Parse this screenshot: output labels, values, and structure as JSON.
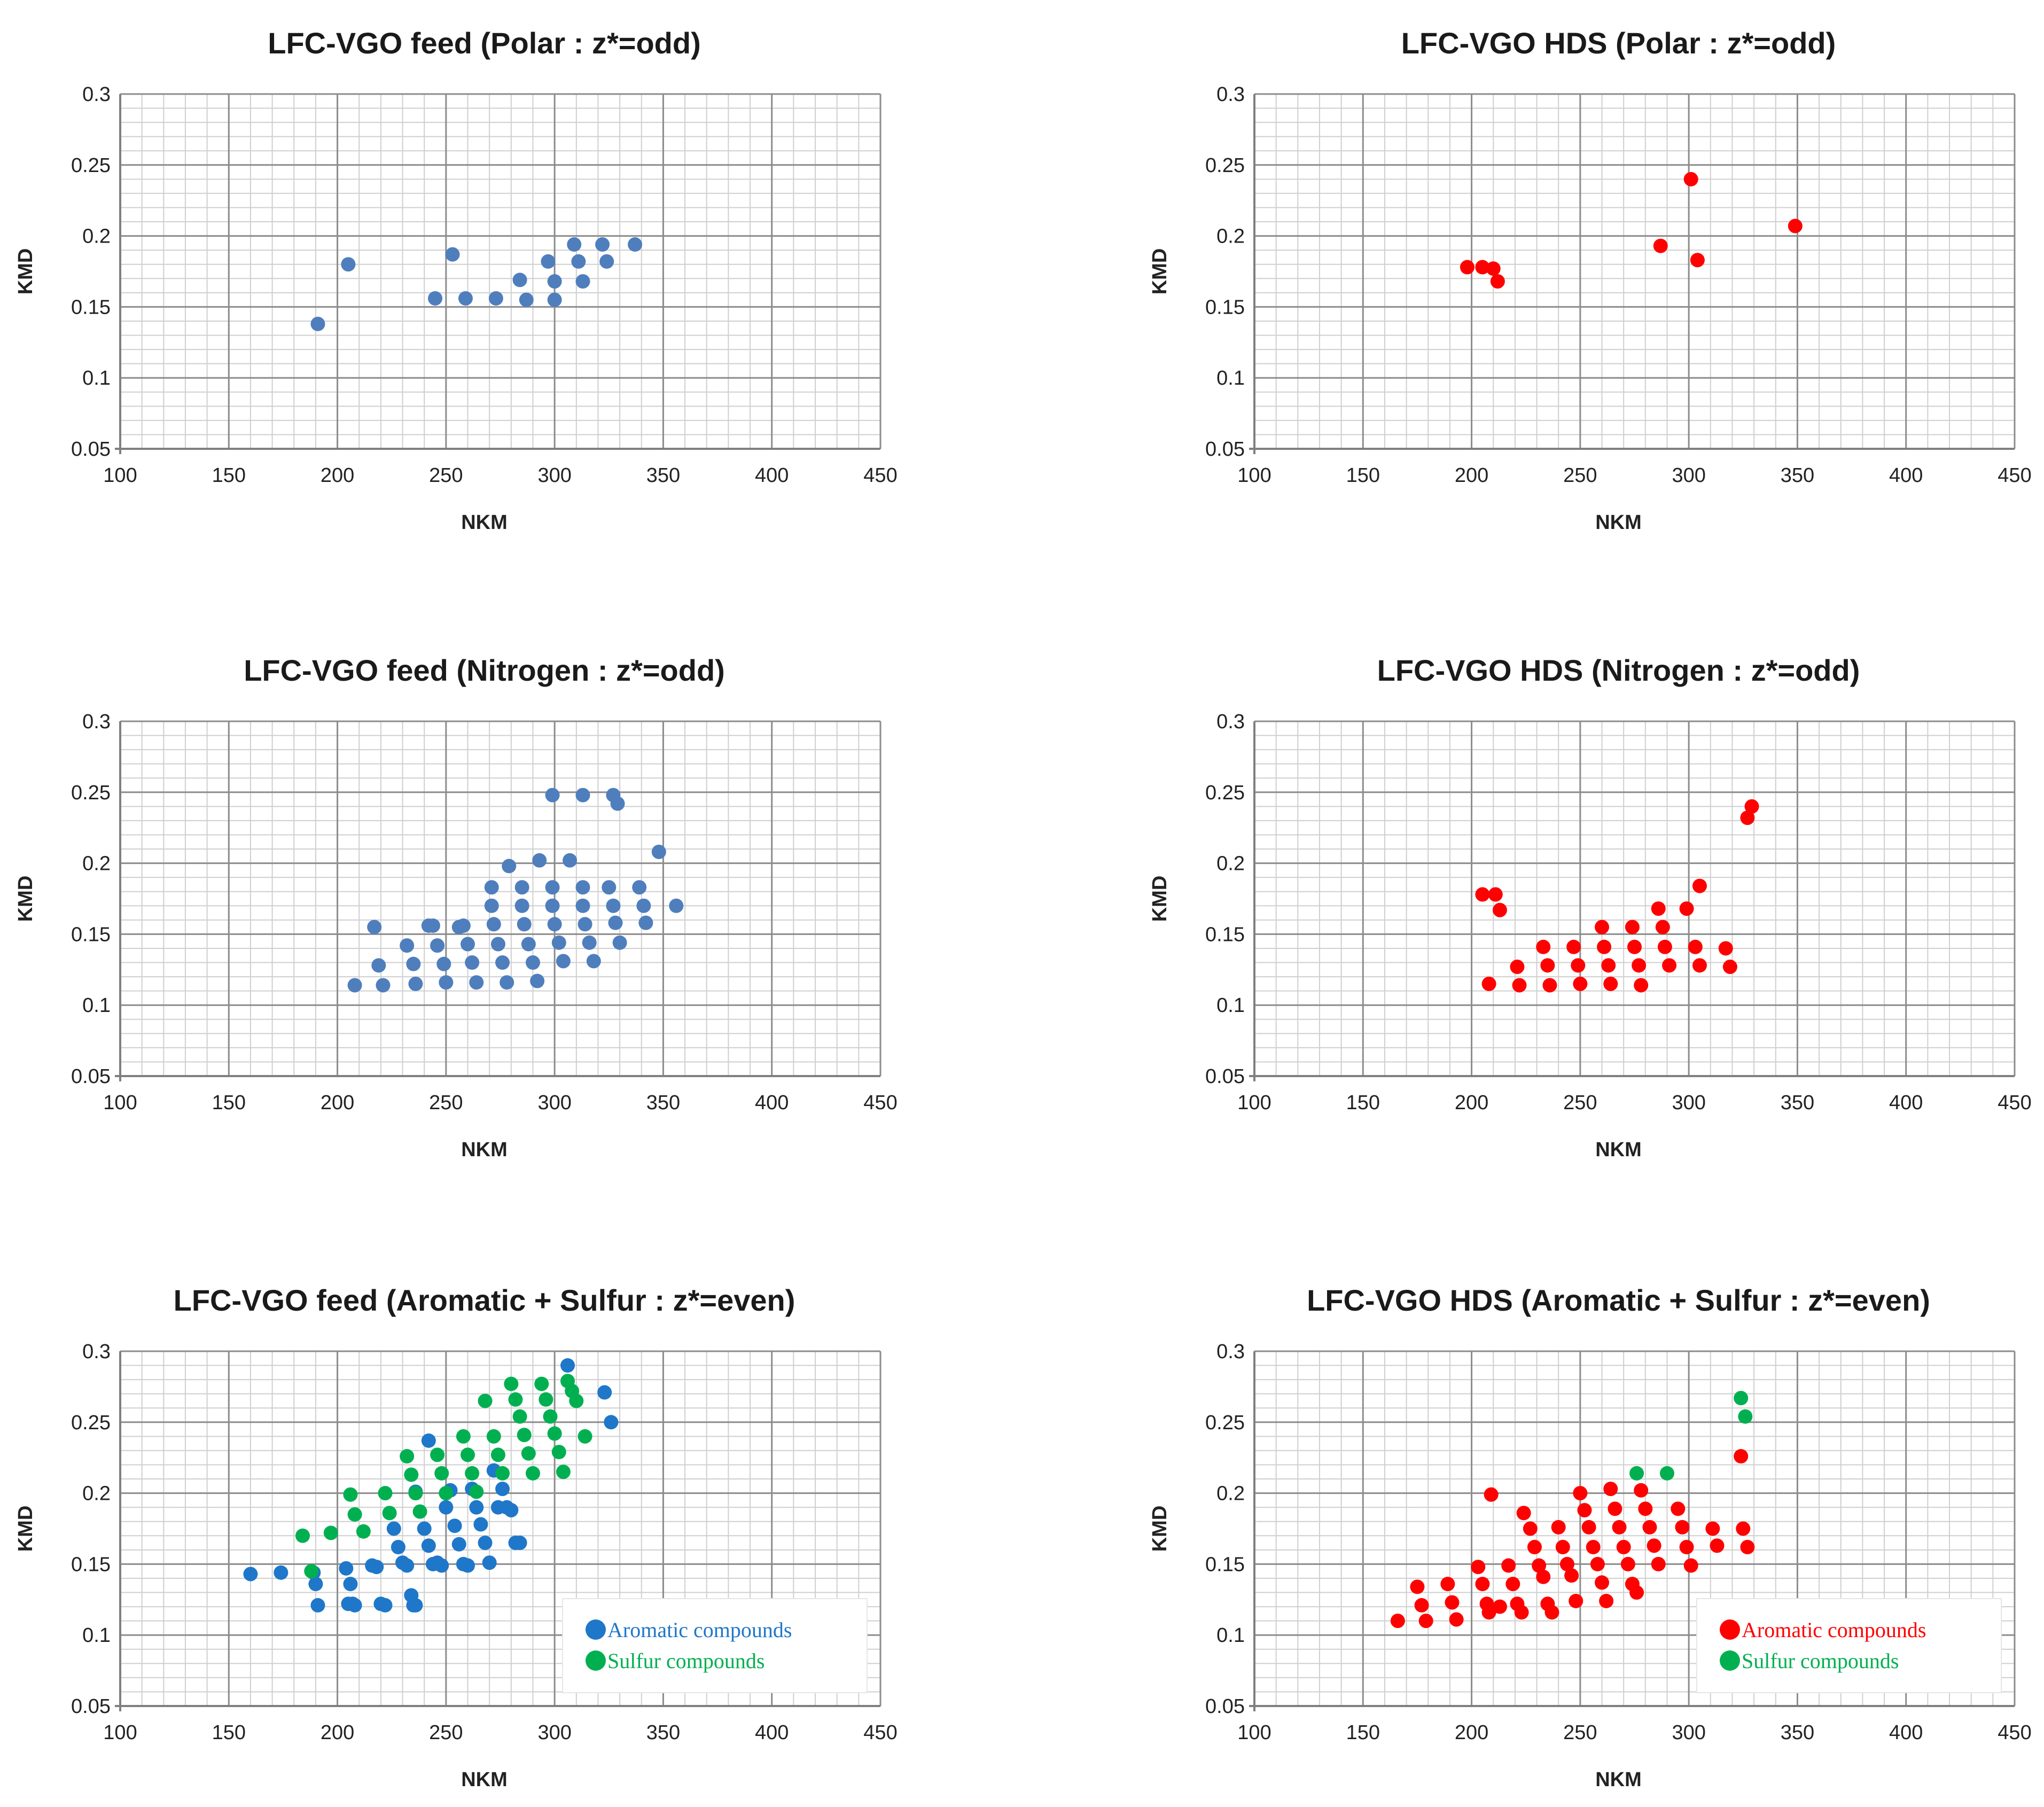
{
  "chart_data": [
    {
      "type": "scatter",
      "title": "LFC-VGO feed (Polar : z*=odd)",
      "xlabel": "NKM",
      "ylabel": "KMD",
      "xlim": [
        100,
        450
      ],
      "ylim": [
        0.05,
        0.3
      ],
      "xticks": [
        "100",
        "150",
        "200",
        "250",
        "300",
        "350",
        "400",
        "450"
      ],
      "yticks": [
        "0.05",
        "0.1",
        "0.15",
        "0.2",
        "0.25",
        "0.3"
      ],
      "grid": true,
      "series": [
        {
          "name": "Polar",
          "color": "#4F7EBD",
          "x": [
            191,
            205,
            253,
            245,
            259,
            273,
            284,
            287,
            297,
            300,
            300,
            309,
            311,
            313,
            322,
            324,
            337
          ],
          "y": [
            0.138,
            0.18,
            0.187,
            0.156,
            0.156,
            0.156,
            0.169,
            0.155,
            0.182,
            0.168,
            0.155,
            0.194,
            0.182,
            0.168,
            0.194,
            0.182,
            0.194
          ]
        }
      ]
    },
    {
      "type": "scatter",
      "title": "LFC-VGO HDS (Polar : z*=odd)",
      "xlabel": "NKM",
      "ylabel": "KMD",
      "xlim": [
        100,
        450
      ],
      "ylim": [
        0.05,
        0.3
      ],
      "xticks": [
        "100",
        "150",
        "200",
        "250",
        "300",
        "350",
        "400",
        "450"
      ],
      "yticks": [
        "0.05",
        "0.1",
        "0.15",
        "0.2",
        "0.25",
        "0.3"
      ],
      "grid": true,
      "series": [
        {
          "name": "Polar",
          "color": "#FF0000",
          "x": [
            198,
            205,
            210,
            212,
            287,
            301,
            304,
            349
          ],
          "y": [
            0.178,
            0.178,
            0.177,
            0.168,
            0.193,
            0.24,
            0.183,
            0.207
          ]
        }
      ]
    },
    {
      "type": "scatter",
      "title": "LFC-VGO feed (Nitrogen : z*=odd)",
      "xlabel": "NKM",
      "ylabel": "KMD",
      "xlim": [
        100,
        450
      ],
      "ylim": [
        0.05,
        0.3
      ],
      "xticks": [
        "100",
        "150",
        "200",
        "250",
        "300",
        "350",
        "400",
        "450"
      ],
      "yticks": [
        "0.05",
        "0.1",
        "0.15",
        "0.2",
        "0.25",
        "0.3"
      ],
      "grid": true,
      "series": [
        {
          "name": "Nitrogen",
          "color": "#4F7EBD",
          "x": [
            299,
            313,
            327,
            329,
            208,
            221,
            236,
            250,
            264,
            278,
            292,
            219,
            235,
            249,
            262,
            276,
            290,
            304,
            318,
            232,
            246,
            260,
            274,
            288,
            302,
            316,
            330,
            217,
            244,
            258,
            272,
            286,
            300,
            314,
            328,
            342,
            271,
            285,
            299,
            313,
            327,
            341,
            271,
            285,
            299,
            313,
            325,
            339,
            279,
            293,
            307,
            348,
            356,
            242,
            256
          ],
          "y": [
            0.248,
            0.248,
            0.248,
            0.242,
            0.114,
            0.114,
            0.115,
            0.116,
            0.116,
            0.116,
            0.117,
            0.128,
            0.129,
            0.129,
            0.13,
            0.13,
            0.13,
            0.131,
            0.131,
            0.142,
            0.142,
            0.143,
            0.143,
            0.143,
            0.144,
            0.144,
            0.144,
            0.155,
            0.156,
            0.156,
            0.157,
            0.157,
            0.157,
            0.157,
            0.158,
            0.158,
            0.17,
            0.17,
            0.17,
            0.17,
            0.17,
            0.17,
            0.183,
            0.183,
            0.183,
            0.183,
            0.183,
            0.183,
            0.198,
            0.202,
            0.202,
            0.208,
            0.17,
            0.156,
            0.155
          ]
        }
      ]
    },
    {
      "type": "scatter",
      "title": "LFC-VGO HDS (Nitrogen : z*=odd)",
      "xlabel": "NKM",
      "ylabel": "KMD",
      "xlim": [
        100,
        450
      ],
      "ylim": [
        0.05,
        0.3
      ],
      "xticks": [
        "100",
        "150",
        "200",
        "250",
        "300",
        "350",
        "400",
        "450"
      ],
      "yticks": [
        "0.05",
        "0.1",
        "0.15",
        "0.2",
        "0.25",
        "0.3"
      ],
      "grid": true,
      "series": [
        {
          "name": "Nitrogen",
          "color": "#FF0000",
          "x": [
            327,
            329,
            205,
            211,
            213,
            305,
            286,
            299,
            260,
            274,
            288,
            233,
            247,
            261,
            275,
            289,
            303,
            317,
            221,
            235,
            249,
            263,
            277,
            291,
            305,
            319,
            208,
            222,
            236,
            250,
            264,
            278
          ],
          "y": [
            0.232,
            0.24,
            0.178,
            0.178,
            0.167,
            0.184,
            0.168,
            0.168,
            0.155,
            0.155,
            0.155,
            0.141,
            0.141,
            0.141,
            0.141,
            0.141,
            0.141,
            0.14,
            0.127,
            0.128,
            0.128,
            0.128,
            0.128,
            0.128,
            0.128,
            0.127,
            0.115,
            0.114,
            0.114,
            0.115,
            0.115,
            0.114
          ]
        }
      ]
    },
    {
      "type": "scatter",
      "title": "LFC-VGO feed (Aromatic + Sulfur : z*=even)",
      "xlabel": "NKM",
      "ylabel": "KMD",
      "xlim": [
        100,
        450
      ],
      "ylim": [
        0.05,
        0.3
      ],
      "xticks": [
        "100",
        "150",
        "200",
        "250",
        "300",
        "350",
        "400",
        "450"
      ],
      "yticks": [
        "0.05",
        "0.1",
        "0.15",
        "0.2",
        "0.25",
        "0.3"
      ],
      "grid": true,
      "legend": {
        "position": "bottom-right",
        "entries": [
          "Aromatic compounds",
          "Sulfur compounds"
        ]
      },
      "series": [
        {
          "name": "Aromatic compounds",
          "color": "#1F77C9",
          "x": [
            160,
            174,
            189,
            190,
            191,
            204,
            206,
            207,
            208,
            205,
            216,
            218,
            220,
            222,
            230,
            232,
            234,
            235,
            236,
            226,
            228,
            240,
            242,
            244,
            246,
            248,
            250,
            252,
            254,
            256,
            258,
            260,
            262,
            264,
            266,
            268,
            270,
            272,
            274,
            276,
            278,
            280,
            282,
            284,
            306,
            323,
            326,
            242,
            236
          ],
          "y": [
            0.143,
            0.144,
            0.144,
            0.136,
            0.121,
            0.147,
            0.136,
            0.122,
            0.121,
            0.122,
            0.149,
            0.148,
            0.122,
            0.121,
            0.151,
            0.149,
            0.128,
            0.121,
            0.201,
            0.175,
            0.162,
            0.175,
            0.163,
            0.15,
            0.151,
            0.149,
            0.19,
            0.202,
            0.177,
            0.164,
            0.15,
            0.149,
            0.203,
            0.19,
            0.178,
            0.165,
            0.151,
            0.216,
            0.19,
            0.203,
            0.19,
            0.188,
            0.165,
            0.165,
            0.29,
            0.271,
            0.25,
            0.237,
            0.121
          ]
        },
        {
          "name": "Sulfur compounds",
          "color": "#00B050",
          "x": [
            184,
            188,
            197,
            206,
            208,
            212,
            222,
            224,
            232,
            234,
            236,
            238,
            246,
            248,
            250,
            258,
            260,
            262,
            264,
            268,
            272,
            274,
            276,
            280,
            282,
            284,
            286,
            288,
            290,
            294,
            296,
            298,
            300,
            302,
            304,
            306,
            308,
            310,
            314
          ],
          "y": [
            0.17,
            0.145,
            0.172,
            0.199,
            0.185,
            0.173,
            0.2,
            0.186,
            0.226,
            0.213,
            0.2,
            0.187,
            0.227,
            0.214,
            0.2,
            0.24,
            0.227,
            0.214,
            0.201,
            0.265,
            0.24,
            0.227,
            0.214,
            0.277,
            0.266,
            0.254,
            0.241,
            0.228,
            0.214,
            0.277,
            0.266,
            0.254,
            0.242,
            0.229,
            0.215,
            0.279,
            0.272,
            0.265,
            0.24
          ]
        }
      ]
    },
    {
      "type": "scatter",
      "title": "LFC-VGO HDS (Aromatic + Sulfur : z*=even)",
      "xlabel": "NKM",
      "ylabel": "KMD",
      "xlim": [
        100,
        450
      ],
      "ylim": [
        0.05,
        0.3
      ],
      "xticks": [
        "100",
        "150",
        "200",
        "250",
        "300",
        "350",
        "400",
        "450"
      ],
      "yticks": [
        "0.05",
        "0.1",
        "0.15",
        "0.2",
        "0.25",
        "0.3"
      ],
      "grid": true,
      "legend": {
        "position": "bottom-right",
        "entries": [
          "Aromatic compounds",
          "Sulfur compounds"
        ]
      },
      "series": [
        {
          "name": "Aromatic compounds",
          "color": "#FF0000",
          "x": [
            166,
            175,
            177,
            179,
            189,
            191,
            193,
            203,
            205,
            207,
            208,
            209,
            213,
            217,
            219,
            221,
            223,
            224,
            227,
            229,
            231,
            233,
            235,
            237,
            240,
            242,
            244,
            246,
            248,
            250,
            252,
            254,
            256,
            258,
            260,
            262,
            264,
            266,
            268,
            270,
            272,
            274,
            276,
            278,
            280,
            282,
            284,
            286,
            295,
            297,
            299,
            301,
            311,
            313,
            324,
            325,
            327
          ],
          "y": [
            0.11,
            0.134,
            0.121,
            0.11,
            0.136,
            0.123,
            0.111,
            0.148,
            0.136,
            0.122,
            0.116,
            0.199,
            0.12,
            0.149,
            0.136,
            0.122,
            0.116,
            0.186,
            0.175,
            0.162,
            0.149,
            0.141,
            0.122,
            0.116,
            0.176,
            0.162,
            0.15,
            0.142,
            0.124,
            0.2,
            0.188,
            0.176,
            0.162,
            0.15,
            0.137,
            0.124,
            0.203,
            0.189,
            0.176,
            0.162,
            0.15,
            0.136,
            0.13,
            0.202,
            0.189,
            0.176,
            0.163,
            0.15,
            0.189,
            0.176,
            0.162,
            0.149,
            0.175,
            0.163,
            0.226,
            0.175,
            0.162
          ]
        },
        {
          "name": "Sulfur compounds",
          "color": "#00B050",
          "x": [
            276,
            290,
            324,
            326
          ],
          "y": [
            0.214,
            0.214,
            0.267,
            0.254
          ]
        }
      ]
    }
  ]
}
